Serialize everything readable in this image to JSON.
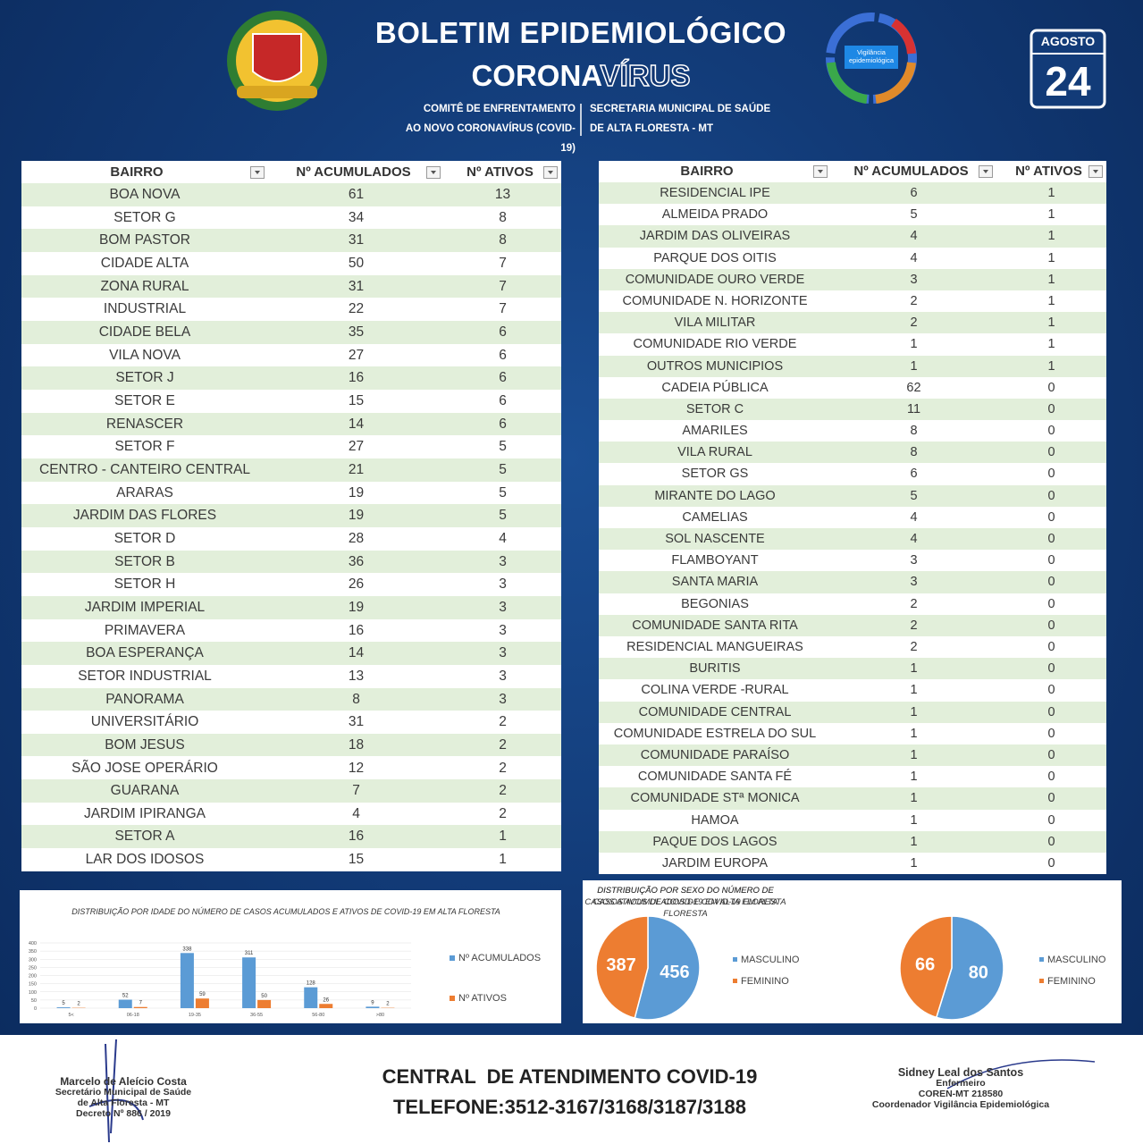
{
  "header": {
    "title": "BOLETIM EPIDEMIOLÓGICO",
    "subtitle_part1": "CORONA",
    "subtitle_part2": "VÍRUS",
    "committee": [
      "COMITÊ DE ENFRENTAMENTO",
      "AO NOVO CORONAVÍRUS (COVID-19)"
    ],
    "secretariat": [
      "SECRETARIA MUNICIPAL DE SAÚDE",
      "DE ALTA FLORESTA - MT"
    ],
    "logo_text": "Vigilância epidemiológica",
    "month": "AGOSTO",
    "day": "24"
  },
  "tables": [
    {
      "columns": [
        "BAIRRO",
        "Nº ACUMULADOS",
        "Nº ATIVOS"
      ],
      "rows": [
        [
          "BOA NOVA",
          61,
          13
        ],
        [
          "SETOR G",
          34,
          8
        ],
        [
          "BOM PASTOR",
          31,
          8
        ],
        [
          "CIDADE ALTA",
          50,
          7
        ],
        [
          "ZONA RURAL",
          31,
          7
        ],
        [
          "INDUSTRIAL",
          22,
          7
        ],
        [
          "CIDADE BELA",
          35,
          6
        ],
        [
          "VILA NOVA",
          27,
          6
        ],
        [
          "SETOR J",
          16,
          6
        ],
        [
          "SETOR E",
          15,
          6
        ],
        [
          "RENASCER",
          14,
          6
        ],
        [
          "SETOR F",
          27,
          5
        ],
        [
          "CENTRO - CANTEIRO CENTRAL",
          21,
          5
        ],
        [
          "ARARAS",
          19,
          5
        ],
        [
          "JARDIM DAS FLORES",
          19,
          5
        ],
        [
          "SETOR D",
          28,
          4
        ],
        [
          "SETOR B",
          36,
          3
        ],
        [
          "SETOR H",
          26,
          3
        ],
        [
          "JARDIM IMPERIAL",
          19,
          3
        ],
        [
          "PRIMAVERA",
          16,
          3
        ],
        [
          "BOA ESPERANÇA",
          14,
          3
        ],
        [
          "SETOR INDUSTRIAL",
          13,
          3
        ],
        [
          "PANORAMA",
          8,
          3
        ],
        [
          "UNIVERSITÁRIO",
          31,
          2
        ],
        [
          "BOM JESUS",
          18,
          2
        ],
        [
          "SÃO JOSE OPERÁRIO",
          12,
          2
        ],
        [
          "GUARANA",
          7,
          2
        ],
        [
          "JARDIM IPIRANGA",
          4,
          2
        ],
        [
          "SETOR A",
          16,
          1
        ],
        [
          "LAR DOS IDOSOS",
          15,
          1
        ]
      ]
    },
    {
      "columns": [
        "BAIRRO",
        "Nº ACUMULADOS",
        "Nº ATIVOS"
      ],
      "rows": [
        [
          "RESIDENCIAL IPE",
          6,
          1
        ],
        [
          "ALMEIDA PRADO",
          5,
          1
        ],
        [
          "JARDIM DAS OLIVEIRAS",
          4,
          1
        ],
        [
          "PARQUE DOS OITIS",
          4,
          1
        ],
        [
          "COMUNIDADE OURO VERDE",
          3,
          1
        ],
        [
          "COMUNIDADE N. HORIZONTE",
          2,
          1
        ],
        [
          "VILA MILITAR",
          2,
          1
        ],
        [
          "COMUNIDADE RIO VERDE",
          1,
          1
        ],
        [
          "OUTROS MUNICIPIOS",
          1,
          1
        ],
        [
          "CADEIA PÚBLICA",
          62,
          0
        ],
        [
          "SETOR C",
          11,
          0
        ],
        [
          "AMARILES",
          8,
          0
        ],
        [
          "VILA RURAL",
          8,
          0
        ],
        [
          "SETOR GS",
          6,
          0
        ],
        [
          "MIRANTE DO LAGO",
          5,
          0
        ],
        [
          "CAMELIAS",
          4,
          0
        ],
        [
          "SOL NASCENTE",
          4,
          0
        ],
        [
          "FLAMBOYANT",
          3,
          0
        ],
        [
          "SANTA MARIA",
          3,
          0
        ],
        [
          "BEGONIAS",
          2,
          0
        ],
        [
          "COMUNIDADE SANTA RITA",
          2,
          0
        ],
        [
          "RESIDENCIAL MANGUEIRAS",
          2,
          0
        ],
        [
          "BURITIS",
          1,
          0
        ],
        [
          "COLINA VERDE -RURAL",
          1,
          0
        ],
        [
          "COMUNIDADE CENTRAL",
          1,
          0
        ],
        [
          "COMUNIDADE ESTRELA DO SUL",
          1,
          0
        ],
        [
          "COMUNIDADE PARAÍSO",
          1,
          0
        ],
        [
          "COMUNIDADE SANTA FÉ",
          1,
          0
        ],
        [
          "COMUNIDADE STª MONICA",
          1,
          0
        ],
        [
          "HAMOA",
          1,
          0
        ],
        [
          "PAQUE DOS LAGOS",
          1,
          0
        ],
        [
          "JARDIM EUROPA",
          1,
          0
        ]
      ]
    }
  ],
  "chart_data": [
    {
      "type": "bar",
      "title": "DISTRIBUIÇÃO POR IDADE DO NÚMERO DE CASOS ACUMULADOS E ATIVOS DE COVID-19 EM ALTA FLORESTA",
      "categories": [
        "5<",
        "06-18",
        "19-35",
        "36-55",
        "56-80",
        ">80"
      ],
      "series": [
        {
          "name": "Nº ACUMULADOS",
          "color": "#5b9bd5",
          "values": [
            5,
            52,
            338,
            311,
            128,
            9
          ]
        },
        {
          "name": "Nº ATIVOS",
          "color": "#ed7d31",
          "values": [
            2,
            7,
            59,
            50,
            26,
            2
          ]
        }
      ],
      "ylim": [
        0,
        400
      ],
      "yticks": [
        0,
        50,
        100,
        150,
        200,
        250,
        300,
        350,
        400
      ],
      "grid": true
    },
    {
      "type": "pie",
      "title": "DISTRIBUIÇÃO POR SEXO DO NÚMERO DE CASOS ACUMULADOS DE COVID-19 EM ALTA FLORESTA",
      "categories": [
        "MASCULINO",
        "FEMININO"
      ],
      "values": [
        456,
        387
      ],
      "colors": [
        "#5b9bd5",
        "#ed7d31"
      ]
    },
    {
      "type": "pie",
      "title": "DISTRIBUIÇÃO POR SEXO DO NÚMERO DE CASOS ATIVOS DE COVID-19 EM ALTA FLORESTA",
      "categories": [
        "MASCULINO",
        "FEMININO"
      ],
      "values": [
        80,
        66
      ],
      "colors": [
        "#5b9bd5",
        "#ed7d31"
      ]
    }
  ],
  "footer": {
    "left_signature": [
      "Marcelo de Aleício Costa",
      "Secretário Municipal de Saúde",
      "de Alta Floresta - MT",
      "Decreto Nº 886 / 2019"
    ],
    "center": [
      "CENTRAL  DE ATENDIMENTO COVID-19",
      "TELEFONE:3512-3167/3168/3187/3188"
    ],
    "right_signature": [
      "Sidney Leal dos Santos",
      "Enfermeiro",
      "COREN-MT 218580",
      "Coordenador Vigilância Epidemiológica"
    ]
  }
}
